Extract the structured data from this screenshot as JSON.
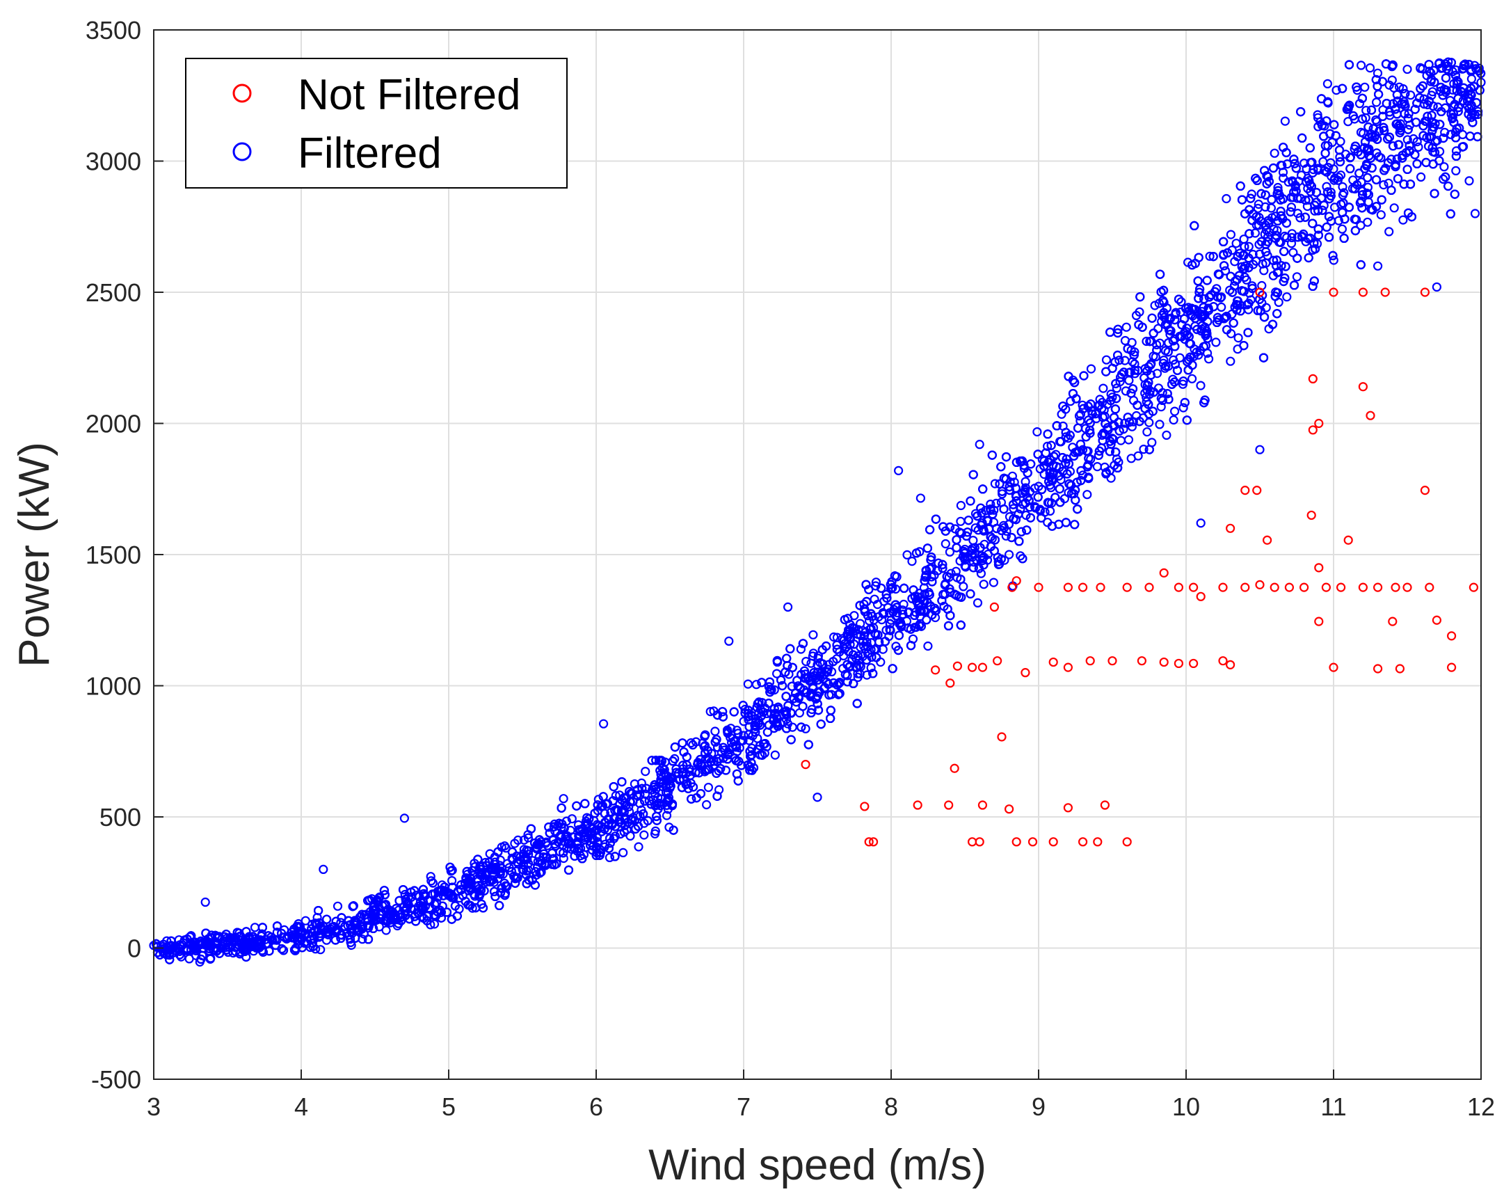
{
  "chart_data": {
    "type": "scatter",
    "title": "",
    "xlabel": "Wind speed (m/s)",
    "ylabel": "Power (kW)",
    "xlim": [
      3,
      12
    ],
    "ylim": [
      -500,
      3500
    ],
    "xticks": [
      "3",
      "4",
      "5",
      "6",
      "7",
      "8",
      "9",
      "10",
      "11",
      "12"
    ],
    "yticks": [
      "-500",
      "0",
      "500",
      "1000",
      "1500",
      "2000",
      "2500",
      "3000",
      "3500"
    ],
    "grid": true,
    "legend_position": "top-left",
    "marker": "open circle",
    "series": [
      {
        "name": "Not Filtered",
        "color": "#ff0000",
        "points": [
          [
            7.82,
            540
          ],
          [
            7.85,
            405
          ],
          [
            7.88,
            405
          ],
          [
            8.18,
            545
          ],
          [
            8.39,
            545
          ],
          [
            8.43,
            685
          ],
          [
            8.55,
            405
          ],
          [
            8.6,
            405
          ],
          [
            8.62,
            545
          ],
          [
            8.72,
            1095
          ],
          [
            8.75,
            805
          ],
          [
            8.8,
            530
          ],
          [
            8.85,
            405
          ],
          [
            8.96,
            405
          ],
          [
            9.1,
            405
          ],
          [
            9.2,
            535
          ],
          [
            9.3,
            405
          ],
          [
            9.4,
            405
          ],
          [
            9.45,
            545
          ],
          [
            9.6,
            405
          ],
          [
            8.45,
            1075
          ],
          [
            8.55,
            1070
          ],
          [
            8.62,
            1070
          ],
          [
            8.91,
            1050
          ],
          [
            9.1,
            1090
          ],
          [
            9.2,
            1070
          ],
          [
            9.35,
            1095
          ],
          [
            9.5,
            1095
          ],
          [
            9.7,
            1095
          ],
          [
            9.85,
            1090
          ],
          [
            9.95,
            1085
          ],
          [
            10.05,
            1085
          ],
          [
            10.25,
            1095
          ],
          [
            10.3,
            1080
          ],
          [
            8.82,
            1375
          ],
          [
            9.0,
            1375
          ],
          [
            9.2,
            1375
          ],
          [
            9.3,
            1375
          ],
          [
            9.42,
            1375
          ],
          [
            9.6,
            1375
          ],
          [
            9.75,
            1375
          ],
          [
            9.85,
            1430
          ],
          [
            9.95,
            1375
          ],
          [
            10.05,
            1375
          ],
          [
            10.1,
            1340
          ],
          [
            10.25,
            1375
          ],
          [
            10.4,
            1375
          ],
          [
            10.5,
            1385
          ],
          [
            10.6,
            1375
          ],
          [
            10.7,
            1375
          ],
          [
            10.8,
            1375
          ],
          [
            10.95,
            1375
          ],
          [
            11.05,
            1375
          ],
          [
            11.2,
            1375
          ],
          [
            11.3,
            1375
          ],
          [
            11.42,
            1375
          ],
          [
            11.5,
            1375
          ],
          [
            11.65,
            1375
          ],
          [
            11.95,
            1375
          ],
          [
            10.3,
            1600
          ],
          [
            10.55,
            1555
          ],
          [
            10.85,
            1650
          ],
          [
            11.1,
            1555
          ],
          [
            10.9,
            1450
          ],
          [
            10.9,
            1245
          ],
          [
            11.4,
            1245
          ],
          [
            11.7,
            1250
          ],
          [
            11.8,
            1190
          ],
          [
            11.0,
            1070
          ],
          [
            11.3,
            1065
          ],
          [
            11.45,
            1065
          ],
          [
            11.8,
            1070
          ],
          [
            10.4,
            1745
          ],
          [
            10.48,
            1745
          ],
          [
            11.62,
            1745
          ],
          [
            10.86,
            1975
          ],
          [
            10.9,
            2000
          ],
          [
            11.2,
            2140
          ],
          [
            11.25,
            2030
          ],
          [
            10.86,
            2170
          ],
          [
            11.0,
            2500
          ],
          [
            11.2,
            2500
          ],
          [
            11.35,
            2500
          ],
          [
            11.62,
            2500
          ],
          [
            10.5,
            2500
          ],
          [
            7.42,
            700
          ],
          [
            8.3,
            1060
          ],
          [
            8.4,
            1010
          ],
          [
            8.7,
            1300
          ],
          [
            8.85,
            1400
          ]
        ]
      },
      {
        "name": "Filtered",
        "color": "#0000ff",
        "curve": [
          [
            3,
            -10
          ],
          [
            4,
            40
          ],
          [
            5,
            200
          ],
          [
            6,
            450
          ],
          [
            7,
            810
          ],
          [
            8,
            1250
          ],
          [
            9,
            1760
          ],
          [
            10,
            2350
          ],
          [
            11,
            2970
          ],
          [
            12,
            3300
          ]
        ],
        "spread_kw": [
          [
            3,
            25
          ],
          [
            5,
            60
          ],
          [
            7,
            110
          ],
          [
            9,
            170
          ],
          [
            11,
            250
          ],
          [
            12,
            230
          ]
        ],
        "points_sample": [
          [
            3.0,
            10
          ],
          [
            3.2,
            20
          ],
          [
            3.35,
            175
          ],
          [
            3.5,
            20
          ],
          [
            3.8,
            30
          ],
          [
            4.0,
            40
          ],
          [
            4.15,
            300
          ],
          [
            4.5,
            120
          ],
          [
            4.7,
            495
          ],
          [
            5.0,
            200
          ],
          [
            5.3,
            260
          ],
          [
            5.5,
            300
          ],
          [
            5.8,
            380
          ],
          [
            6.0,
            450
          ],
          [
            6.05,
            855
          ],
          [
            6.5,
            610
          ],
          [
            6.9,
            1170
          ],
          [
            7.0,
            810
          ],
          [
            7.3,
            1300
          ],
          [
            7.5,
            1080
          ],
          [
            7.5,
            575
          ],
          [
            8.0,
            1250
          ],
          [
            8.05,
            1820
          ],
          [
            8.2,
            1715
          ],
          [
            8.5,
            1520
          ],
          [
            8.6,
            1920
          ],
          [
            8.8,
            1500
          ],
          [
            9.0,
            1760
          ],
          [
            9.3,
            1900
          ],
          [
            9.5,
            2100
          ],
          [
            9.8,
            2300
          ],
          [
            10.0,
            2350
          ],
          [
            10.1,
            1620
          ],
          [
            10.4,
            2600
          ],
          [
            10.5,
            1900
          ],
          [
            10.6,
            3030
          ],
          [
            11.0,
            2970
          ],
          [
            11.1,
            3200
          ],
          [
            11.3,
            2600
          ],
          [
            11.5,
            3350
          ],
          [
            11.7,
            2520
          ],
          [
            12.0,
            3300
          ],
          [
            11.96,
            2800
          ]
        ]
      }
    ]
  }
}
